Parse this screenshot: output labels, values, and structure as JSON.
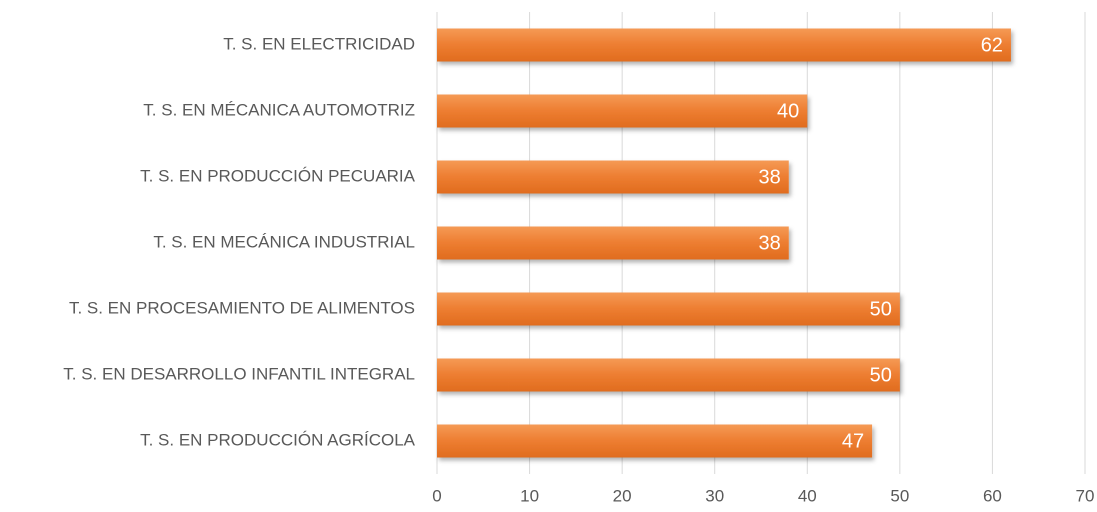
{
  "chart_data": {
    "type": "bar",
    "orientation": "horizontal",
    "categories": [
      "T. S. EN ELECTRICIDAD",
      "T. S. EN MÉCANICA AUTOMOTRIZ",
      "T. S. EN PRODUCCIÓN PECUARIA",
      "T. S. EN MECÁNICA INDUSTRIAL",
      "T. S. EN PROCESAMIENTO DE ALIMENTOS",
      "T. S. EN DESARROLLO INFANTIL INTEGRAL",
      "T. S. EN PRODUCCIÓN AGRÍCOLA"
    ],
    "values": [
      62,
      40,
      38,
      38,
      50,
      50,
      47
    ],
    "color": "#ed7d31",
    "xlim": [
      0,
      70
    ],
    "xticks": [
      0,
      10,
      20,
      30,
      40,
      50,
      60,
      70
    ],
    "grid": true
  }
}
